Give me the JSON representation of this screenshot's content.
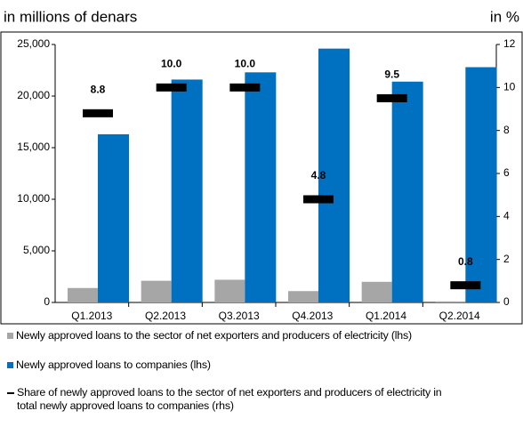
{
  "chart_data": {
    "type": "bar",
    "y_label": "in millions of denars",
    "y2_label": "in %",
    "categories": [
      "Q1.2013",
      "Q2.2013",
      "Q3.2013",
      "Q4.2013",
      "Q1.2014",
      "Q2.2014"
    ],
    "series": [
      {
        "name": "Newly approved loans to the sector of net exporters and producers of electricity (lhs)",
        "color": "#a6a6a6",
        "values": [
          1400,
          2100,
          2200,
          1100,
          2000,
          100
        ]
      },
      {
        "name": "Newly approved loans to companies (lhs)",
        "color": "#0070c0",
        "values": [
          16300,
          21600,
          22300,
          24600,
          21400,
          22800
        ]
      },
      {
        "name": "Share of newly approved loans to the sector of net exporters and producers of electricity in total newly approved loans to companies (rhs)",
        "color": "#000000",
        "axis": "y2",
        "type": "marker",
        "values": [
          8.8,
          10,
          10,
          4.8,
          9.5,
          0.8
        ],
        "value_labels": [
          "8.8",
          "10.0",
          "10.0",
          "4.8",
          "9.5",
          "0.8"
        ]
      }
    ],
    "ylim": [
      0,
      25000
    ],
    "yticks": [
      0,
      {
        "value": 5000,
        "label": "5,000"
      },
      {
        "value": 10000,
        "label": "10,000"
      },
      {
        "value": 15000,
        "label": "15,000"
      },
      {
        "value": 20000,
        "label": "20,000"
      },
      {
        "value": 25000,
        "label": "25,000"
      }
    ],
    "y2lim": [
      0,
      12
    ],
    "y2ticks": [
      0,
      2,
      4,
      6,
      8,
      10,
      12
    ],
    "grid": false
  }
}
